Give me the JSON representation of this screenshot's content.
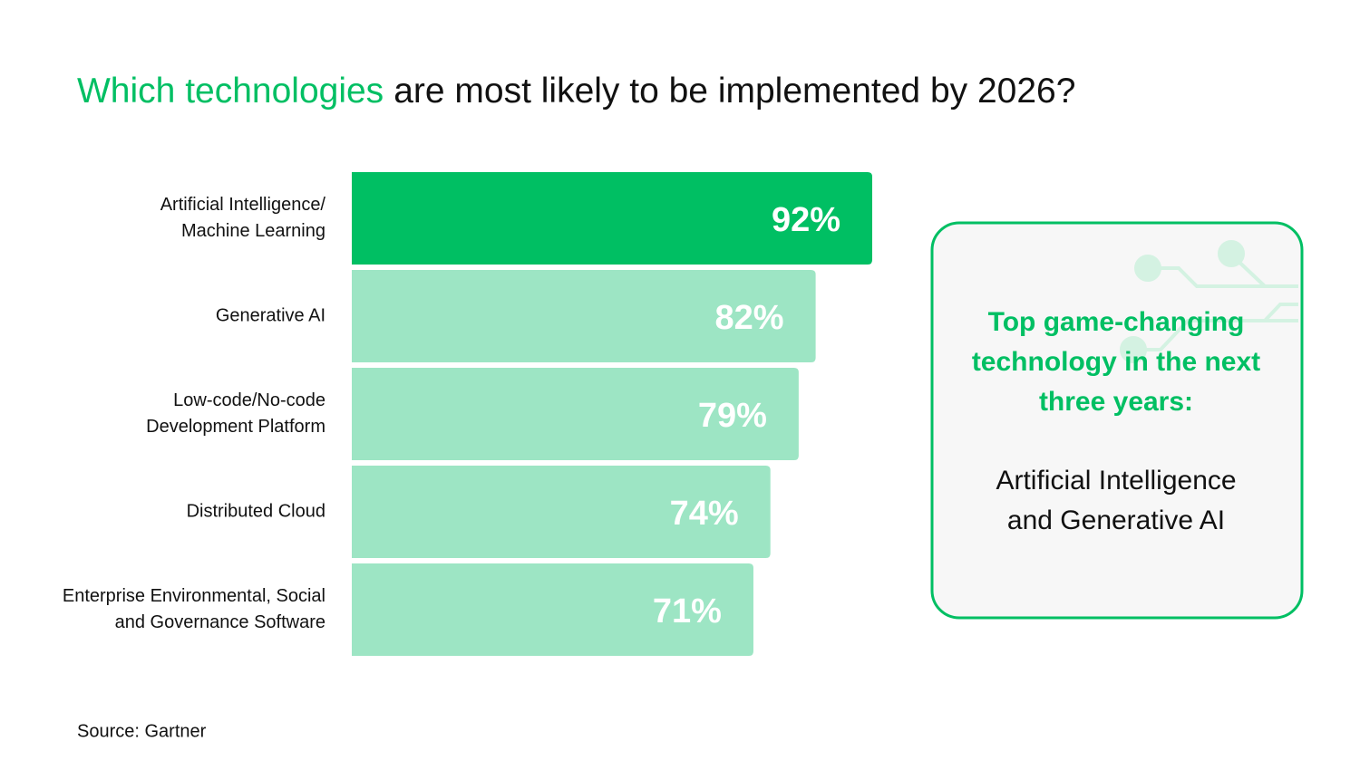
{
  "chart_data": {
    "type": "bar",
    "title_highlight": "Which technologies",
    "title_rest": "are most likely to be implemented by 2026?",
    "categories": [
      [
        "Artificial Intelligence/",
        "Machine Learning"
      ],
      [
        "Generative AI"
      ],
      [
        "Low-code/No-code",
        "Development Platform"
      ],
      [
        "Distributed Cloud"
      ],
      [
        "Enterprise Environmental, Social",
        "and Governance Software"
      ]
    ],
    "values": [
      92,
      82,
      79,
      74,
      71
    ],
    "value_labels": [
      "92%",
      "82%",
      "79%",
      "74%",
      "71%"
    ],
    "colors": [
      "#00bf63",
      "#9de5c4",
      "#9de5c4",
      "#9de5c4",
      "#9de5c4"
    ],
    "callout": {
      "heading": [
        "Top game-changing",
        "technology in the next",
        "three years:"
      ],
      "body": [
        "Artificial Intelligence",
        "and Generative AI"
      ]
    },
    "source": "Source: Gartner"
  }
}
